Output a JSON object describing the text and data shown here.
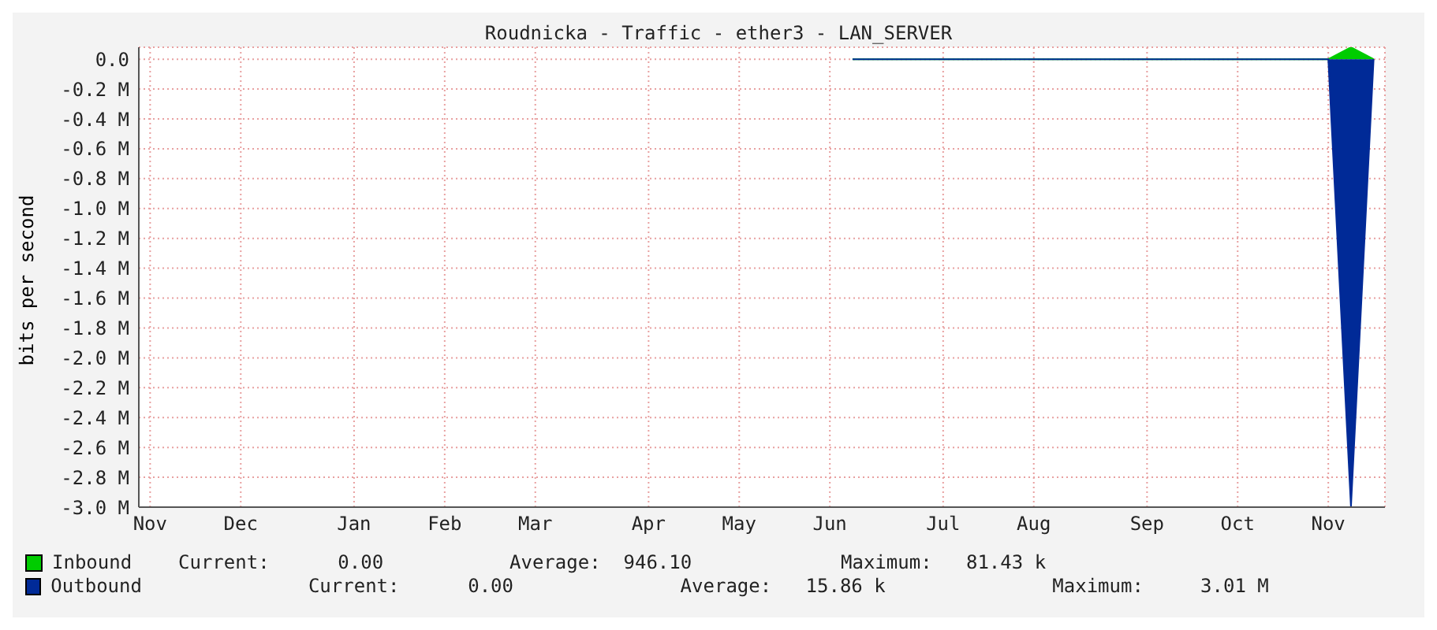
{
  "chart_data": {
    "type": "area",
    "title": "Roudnicka - Traffic - ether3 - LAN_SERVER",
    "ylabel": "bits per second",
    "categories": [
      "Nov",
      null,
      null,
      null,
      "Dec",
      null,
      null,
      null,
      null,
      "Jan",
      null,
      null,
      null,
      "Feb",
      null,
      null,
      null,
      "Mar",
      null,
      null,
      null,
      null,
      "Apr",
      null,
      null,
      null,
      "May",
      null,
      null,
      null,
      "Jun",
      null,
      null,
      null,
      null,
      "Jul",
      null,
      null,
      null,
      "Aug",
      null,
      null,
      null,
      null,
      "Sep",
      null,
      null,
      null,
      "Oct",
      null,
      null,
      null,
      "Nov",
      null,
      null
    ],
    "series": [
      {
        "name": "Inbound",
        "color": "#00cc00",
        "values": [
          null,
          null,
          null,
          null,
          null,
          null,
          null,
          null,
          null,
          null,
          null,
          null,
          null,
          null,
          null,
          null,
          null,
          null,
          null,
          null,
          null,
          null,
          null,
          null,
          null,
          null,
          null,
          null,
          null,
          null,
          null,
          0,
          0,
          0,
          0,
          0,
          0,
          0,
          0,
          0,
          0,
          0,
          0,
          0,
          0,
          0,
          0,
          0,
          0,
          0,
          0,
          0,
          0,
          80000,
          0
        ]
      },
      {
        "name": "Outbound",
        "color": "#002a97",
        "values": [
          null,
          null,
          null,
          null,
          null,
          null,
          null,
          null,
          null,
          null,
          null,
          null,
          null,
          null,
          null,
          null,
          null,
          null,
          null,
          null,
          null,
          null,
          null,
          null,
          null,
          null,
          null,
          null,
          null,
          null,
          null,
          0,
          0,
          0,
          0,
          0,
          0,
          0,
          0,
          0,
          0,
          0,
          0,
          0,
          0,
          0,
          0,
          0,
          0,
          0,
          0,
          0,
          0,
          -3000000,
          0
        ]
      }
    ],
    "ylim": [
      -3000000,
      80000
    ],
    "yticks": [
      {
        "value": 0,
        "label": "0.0"
      },
      {
        "value": -200000,
        "label": "-0.2 M"
      },
      {
        "value": -400000,
        "label": "-0.4 M"
      },
      {
        "value": -600000,
        "label": "-0.6 M"
      },
      {
        "value": -800000,
        "label": "-0.8 M"
      },
      {
        "value": -1000000,
        "label": "-1.0 M"
      },
      {
        "value": -1200000,
        "label": "-1.2 M"
      },
      {
        "value": -1400000,
        "label": "-1.4 M"
      },
      {
        "value": -1600000,
        "label": "-1.6 M"
      },
      {
        "value": -1800000,
        "label": "-1.8 M"
      },
      {
        "value": -2000000,
        "label": "-2.0 M"
      },
      {
        "value": -2200000,
        "label": "-2.2 M"
      },
      {
        "value": -2400000,
        "label": "-2.4 M"
      },
      {
        "value": -2600000,
        "label": "-2.6 M"
      },
      {
        "value": -2800000,
        "label": "-2.8 M"
      },
      {
        "value": -3000000,
        "label": "-3.0 M"
      }
    ],
    "grid": true,
    "legend": "bottom",
    "annotations": [
      "Current:      0.00",
      "Average:  946.10",
      "Maximum:   81.43 k",
      "Current:      0.00",
      "Average:   15.86 k",
      "Maximum:     3.01 M"
    ]
  }
}
